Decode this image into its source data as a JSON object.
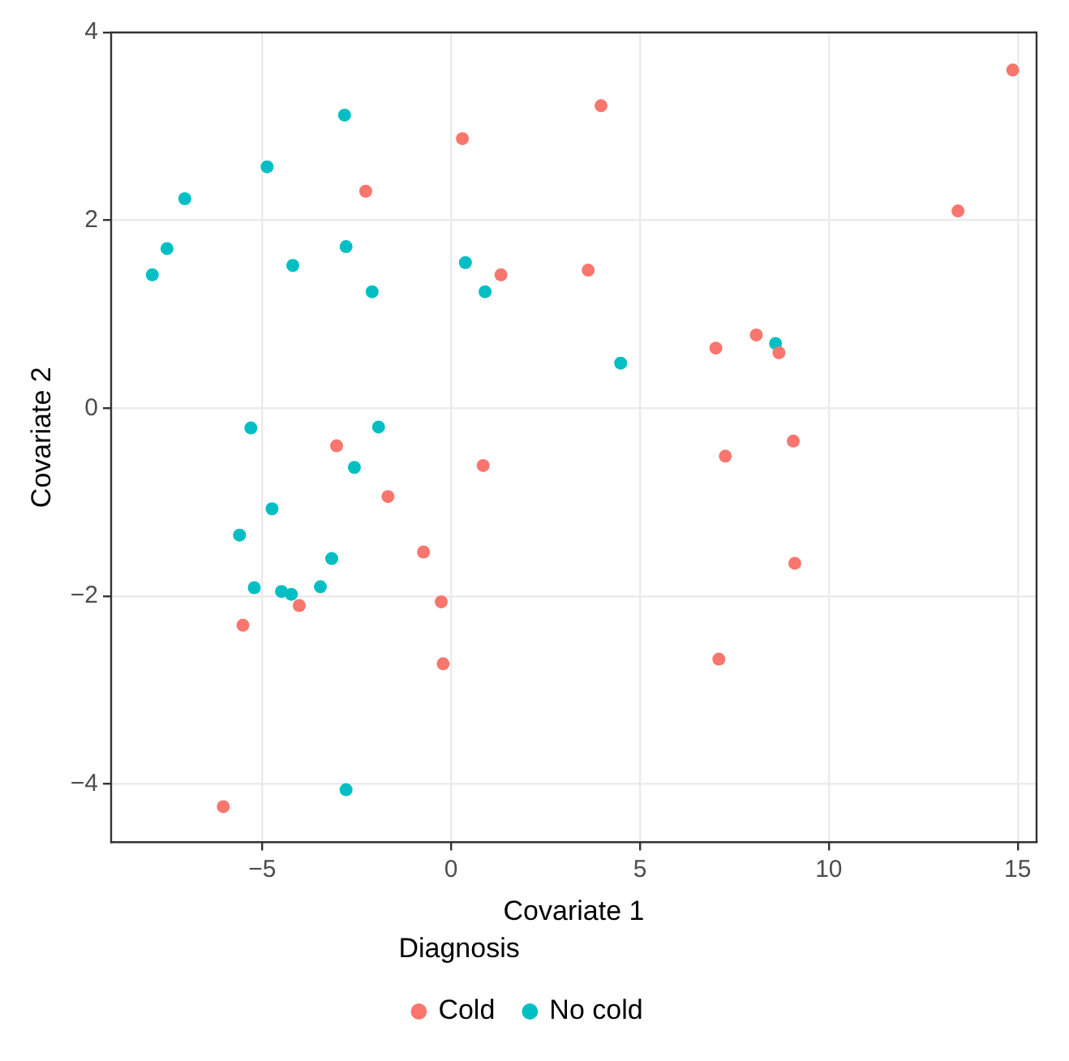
{
  "chart_data": {
    "type": "scatter",
    "xlabel": "Covariate 1",
    "ylabel": "Covariate 2",
    "legend_title": "Diagnosis",
    "legend": "bottom",
    "grid": true,
    "marker": "circle",
    "xlim": [
      -9,
      15.5
    ],
    "ylim": [
      -4.62,
      4
    ],
    "xticks": [
      {
        "value": -5,
        "label": "−5"
      },
      0,
      5,
      10,
      15
    ],
    "yticks": [
      {
        "value": -4,
        "label": "−4"
      },
      {
        "value": -2,
        "label": "−2"
      },
      0,
      2,
      4
    ],
    "series": [
      {
        "name": "Cold",
        "color": "#f8766d",
        "x": [
          14.87,
          3.97,
          0.3,
          13.42,
          -2.26,
          1.32,
          3.63,
          7.01,
          8.08,
          8.68,
          -3.03,
          0.85,
          7.26,
          9.06,
          -1.67,
          -0.73,
          9.1,
          -0.26,
          -4.02,
          -5.51,
          -0.21,
          7.09,
          -6.03
        ],
        "values": [
          3.6,
          3.22,
          2.87,
          2.1,
          2.31,
          1.42,
          1.47,
          0.64,
          0.78,
          0.59,
          -0.4,
          -0.61,
          -0.51,
          -0.35,
          -0.94,
          -1.53,
          -1.65,
          -2.06,
          -2.1,
          -2.31,
          -2.72,
          -2.67,
          -4.24
        ]
      },
      {
        "name": "No cold",
        "color": "#00bfc4",
        "x": [
          -2.82,
          -4.87,
          -7.05,
          -7.52,
          -7.91,
          -4.19,
          -2.78,
          -2.09,
          0.38,
          0.9,
          4.49,
          8.59,
          -5.3,
          -1.92,
          -2.56,
          -4.74,
          -5.6,
          -3.16,
          -5.21,
          -4.49,
          -4.23,
          -3.46,
          -2.78
        ],
        "values": [
          3.12,
          2.57,
          2.23,
          1.7,
          1.42,
          1.52,
          1.72,
          1.24,
          1.55,
          1.24,
          0.48,
          0.69,
          -0.21,
          -0.2,
          -0.63,
          -1.07,
          -1.35,
          -1.6,
          -1.91,
          -1.95,
          -1.98,
          -1.9,
          -4.06
        ]
      }
    ]
  }
}
